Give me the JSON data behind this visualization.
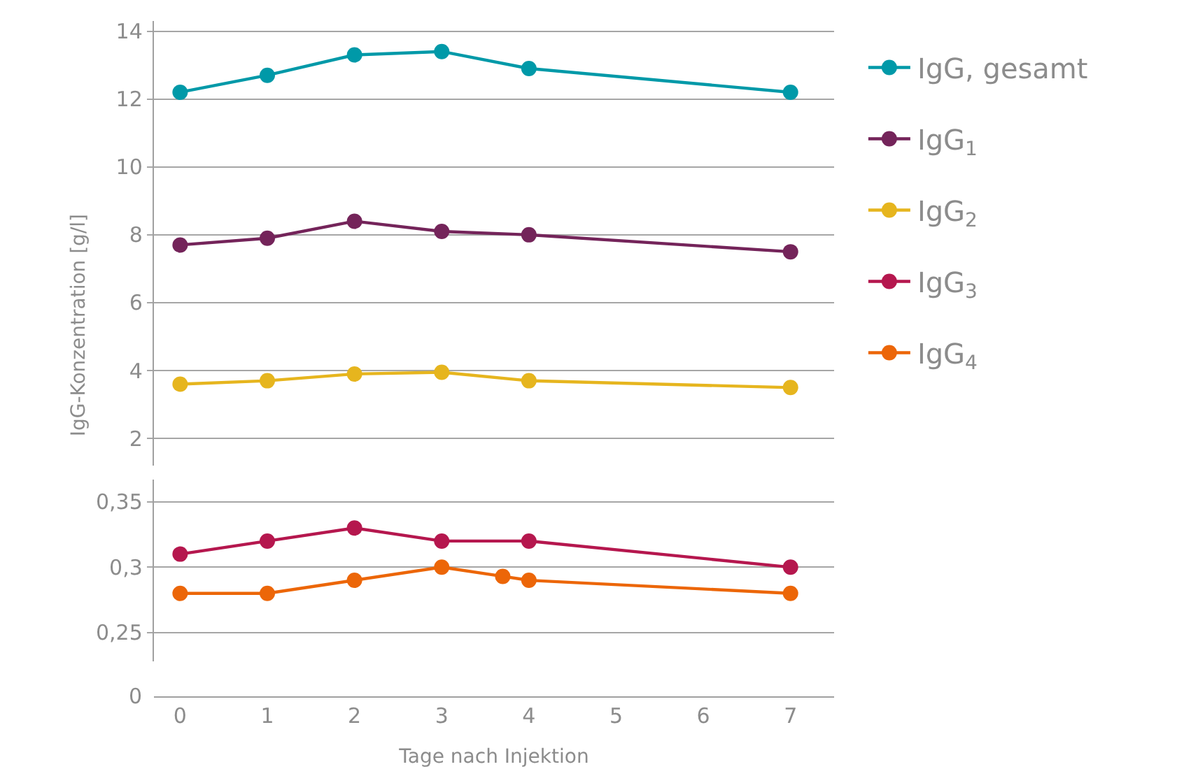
{
  "chart_data": [
    {
      "type": "line",
      "ylabel": "IgG-Konzentration [g/l]",
      "x": [
        0,
        1,
        2,
        3,
        4,
        7
      ],
      "xlim": [
        -0.3,
        7.5
      ],
      "xticks": [
        0,
        1,
        2,
        3,
        4,
        5,
        6,
        7
      ],
      "ylim": [
        1.2,
        14.3
      ],
      "yticks": [
        2,
        4,
        6,
        8,
        10,
        12,
        14
      ],
      "grid": "y",
      "legend": "right",
      "marker": "circle",
      "line_style": "solid",
      "tick_labels": "y",
      "series": [
        {
          "name": "IgG, gesamt",
          "color": "#0099a8",
          "values": [
            12.2,
            12.7,
            13.3,
            13.4,
            12.9,
            12.2
          ]
        },
        {
          "name": "IgG$_{1}$",
          "color": "#74245a",
          "values": [
            7.7,
            7.9,
            8.4,
            8.1,
            8.0,
            7.5
          ]
        },
        {
          "name": "IgG$_{2}$",
          "color": "#e6b51e",
          "values": [
            3.6,
            3.7,
            3.9,
            3.95,
            3.7,
            3.5
          ]
        }
      ]
    },
    {
      "type": "line",
      "xlabel": "Tage nach Injektion",
      "annotations": [
        "0"
      ],
      "x": [
        0,
        1,
        2,
        3,
        4,
        7
      ],
      "xlim": [
        -0.3,
        7.5
      ],
      "xticks": [
        0,
        1,
        2,
        3,
        4,
        5,
        6,
        7
      ],
      "ylim": [
        0.228,
        0.367
      ],
      "yticks": [
        {
          "value": 0.25,
          "label": "0,25"
        },
        {
          "value": 0.3,
          "label": "0,3"
        },
        {
          "value": 0.35,
          "label": "0,35"
        }
      ],
      "grid": "y",
      "legend": "right",
      "marker": "circle",
      "line_style": "solid",
      "series": [
        {
          "name": "IgG$_{3}$",
          "color": "#b5174e",
          "values": [
            0.31,
            0.32,
            0.33,
            0.32,
            0.32,
            0.3
          ]
        },
        {
          "name": "IgG$_{4}$",
          "color": "#ec6608",
          "x": [
            0,
            1,
            2,
            3,
            3.7,
            4,
            7
          ],
          "values": [
            0.28,
            0.28,
            0.29,
            0.3,
            0.293,
            0.29,
            0.28
          ]
        }
      ]
    }
  ]
}
